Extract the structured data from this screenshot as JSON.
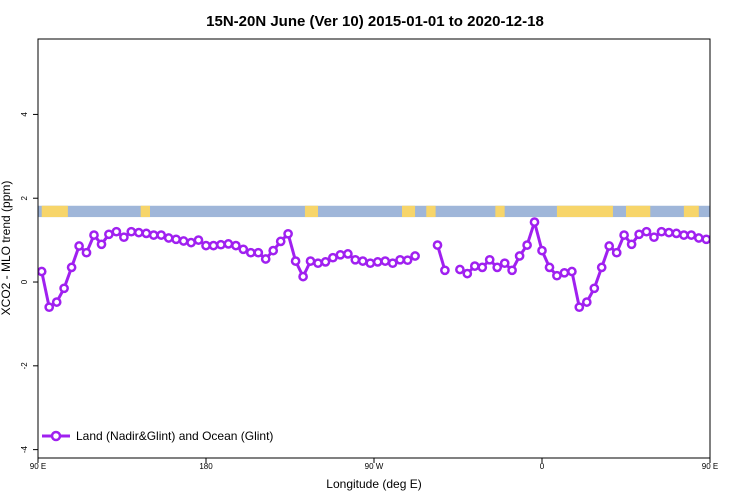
{
  "chart_data": {
    "type": "line",
    "title": "15N-20N June (Ver 10)   2015-01-01 to 2020-12-18",
    "xlabel": "Longitude (deg E)",
    "ylabel": "XCO2 - MLO trend (ppm)",
    "xlim": [
      90,
      450
    ],
    "ylim": [
      -4.2,
      5.8
    ],
    "grid": false,
    "legend_position": "bottom-left",
    "x_ticks": [
      {
        "value": 90,
        "label": "90 E"
      },
      {
        "value": 180,
        "label": "180"
      },
      {
        "value": 270,
        "label": "90 W"
      },
      {
        "value": 360,
        "label": "0"
      },
      {
        "value": 450,
        "label": "90 E"
      },
      {
        "value": 540,
        "label": "180"
      }
    ],
    "y_ticks": [
      {
        "value": -4,
        "label": "-4"
      },
      {
        "value": -2,
        "label": "-2"
      },
      {
        "value": 0,
        "label": "0"
      },
      {
        "value": 2,
        "label": "2"
      },
      {
        "value": 4,
        "label": "4"
      }
    ],
    "colors": {
      "series": "#a020f0",
      "ocean_band": "#9fb6d9",
      "land_band": "#f7d56a"
    },
    "land_strip": {
      "y_range": [
        1.55,
        1.82
      ],
      "land_segments": [
        [
          92,
          106
        ],
        [
          145,
          150
        ],
        [
          233,
          240
        ],
        [
          285,
          292
        ],
        [
          298,
          303
        ],
        [
          335,
          340
        ],
        [
          368,
          398
        ],
        [
          405,
          418
        ],
        [
          436,
          444
        ],
        [
          450,
          466
        ],
        [
          476,
          479
        ],
        [
          520,
          528
        ]
      ]
    },
    "series": [
      {
        "name": "Land (Nadir&Glint) and Ocean (Glint)",
        "points": [
          [
            92,
            0.25
          ],
          [
            96,
            -0.6
          ],
          [
            100,
            -0.48
          ],
          [
            104,
            -0.15
          ],
          [
            108,
            0.35
          ],
          [
            112,
            0.86
          ],
          [
            116,
            0.7
          ],
          [
            120,
            1.12
          ],
          [
            124,
            0.9
          ],
          [
            128,
            1.14
          ],
          [
            132,
            1.2
          ],
          [
            136,
            1.07
          ],
          [
            140,
            1.2
          ],
          [
            144,
            1.18
          ],
          [
            148,
            1.16
          ],
          [
            152,
            1.12
          ],
          [
            156,
            1.12
          ],
          [
            160,
            1.05
          ],
          [
            164,
            1.02
          ],
          [
            168,
            0.98
          ],
          [
            172,
            0.94
          ],
          [
            176,
            1.0
          ],
          [
            180,
            0.87
          ],
          [
            184,
            0.87
          ],
          [
            188,
            0.89
          ],
          [
            192,
            0.91
          ],
          [
            196,
            0.87
          ],
          [
            200,
            0.78
          ],
          [
            204,
            0.7
          ],
          [
            208,
            0.7
          ],
          [
            212,
            0.55
          ],
          [
            216,
            0.75
          ],
          [
            220,
            0.97
          ],
          [
            224,
            1.15
          ],
          [
            228,
            0.5
          ],
          [
            232,
            0.13
          ],
          [
            236,
            0.5
          ],
          [
            240,
            0.45
          ],
          [
            244,
            0.48
          ],
          [
            248,
            0.58
          ],
          [
            252,
            0.65
          ],
          [
            256,
            0.67
          ],
          [
            260,
            0.53
          ],
          [
            264,
            0.5
          ],
          [
            268,
            0.45
          ],
          [
            272,
            0.48
          ],
          [
            276,
            0.5
          ],
          [
            280,
            0.45
          ],
          [
            284,
            0.53
          ],
          [
            288,
            0.52
          ],
          [
            292,
            0.62
          ],
          null,
          [
            304,
            0.88
          ],
          [
            308,
            0.28
          ],
          null,
          [
            316,
            0.3
          ],
          [
            320,
            0.2
          ],
          [
            324,
            0.38
          ],
          [
            328,
            0.35
          ],
          [
            332,
            0.53
          ],
          [
            336,
            0.35
          ],
          [
            340,
            0.45
          ],
          [
            344,
            0.28
          ],
          [
            348,
            0.62
          ],
          [
            352,
            0.88
          ],
          [
            356,
            1.43
          ],
          [
            360,
            0.75
          ],
          [
            364,
            0.35
          ],
          [
            368,
            0.15
          ],
          [
            372,
            0.22
          ],
          [
            376,
            0.25
          ],
          [
            380,
            -0.6
          ],
          [
            384,
            -0.48
          ],
          [
            388,
            -0.15
          ],
          [
            392,
            0.35
          ],
          [
            396,
            0.86
          ],
          [
            400,
            0.7
          ],
          [
            404,
            1.12
          ],
          [
            408,
            0.9
          ],
          [
            412,
            1.14
          ],
          [
            416,
            1.2
          ],
          [
            420,
            1.07
          ],
          [
            424,
            1.2
          ],
          [
            428,
            1.18
          ],
          [
            432,
            1.16
          ],
          [
            436,
            1.12
          ],
          [
            440,
            1.12
          ],
          [
            444,
            1.05
          ],
          [
            448,
            1.02
          ]
        ]
      }
    ]
  }
}
